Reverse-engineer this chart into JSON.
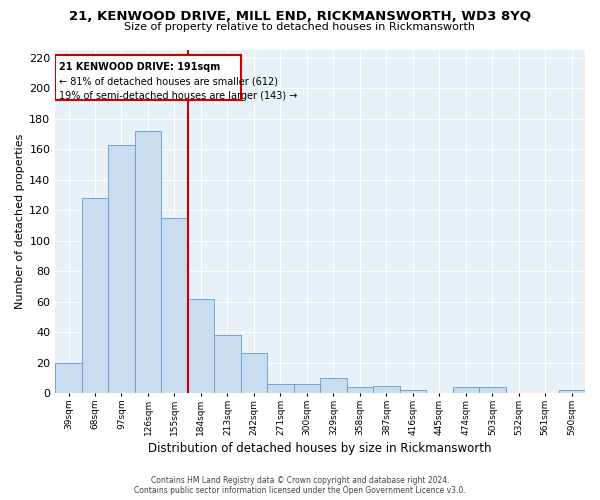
{
  "title_line1": "21, KENWOOD DRIVE, MILL END, RICKMANSWORTH, WD3 8YQ",
  "title_line2": "Size of property relative to detached houses in Rickmansworth",
  "xlabel": "Distribution of detached houses by size in Rickmansworth",
  "ylabel": "Number of detached properties",
  "bar_color": "#c8ddf0",
  "bar_edge_color": "#6699cc",
  "reference_line_x": 184,
  "reference_line_color": "#cc0000",
  "bin_edges": [
    39,
    68,
    97,
    126,
    155,
    184,
    213,
    242,
    271,
    300,
    329,
    358,
    387,
    416,
    445,
    474,
    503,
    532,
    561,
    590,
    619
  ],
  "bar_heights": [
    20,
    128,
    163,
    172,
    115,
    62,
    38,
    26,
    6,
    6,
    10,
    4,
    5,
    2,
    0,
    4,
    4,
    0,
    0,
    2
  ],
  "annotation_box_text_line1": "21 KENWOOD DRIVE: 191sqm",
  "annotation_box_text_line2": "← 81% of detached houses are smaller (612)",
  "annotation_box_text_line3": "19% of semi-detached houses are larger (143) →",
  "ylim": [
    0,
    225
  ],
  "yticks": [
    0,
    20,
    40,
    60,
    80,
    100,
    120,
    140,
    160,
    180,
    200,
    220
  ],
  "footer_line1": "Contains HM Land Registry data © Crown copyright and database right 2024.",
  "footer_line2": "Contains public sector information licensed under the Open Government Licence v3.0.",
  "background_color": "#ffffff",
  "axes_bg_color": "#e8f0f8"
}
